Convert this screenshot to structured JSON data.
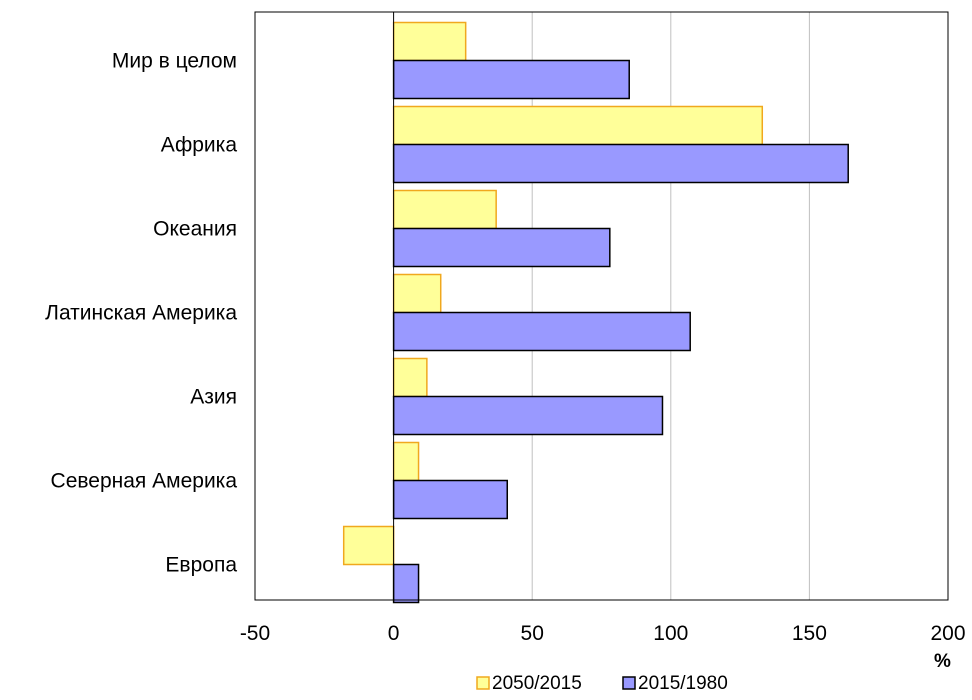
{
  "chart_data": {
    "type": "bar",
    "orientation": "horizontal",
    "categories": [
      "Мир в целом",
      "Африка",
      "Океания",
      "Латинская Америка",
      "Азия",
      "Северная Америка",
      "Европа"
    ],
    "series": [
      {
        "name": "2050/2015",
        "values": [
          26,
          133,
          37,
          17,
          12,
          9,
          -18
        ],
        "color": "#ffff99",
        "stroke": "#f0a81e"
      },
      {
        "name": "2015/1980",
        "values": [
          85,
          164,
          78,
          107,
          97,
          41,
          9
        ],
        "color": "#9999ff",
        "stroke": "#000000"
      }
    ],
    "xlim": [
      -50,
      200
    ],
    "xticks": [
      "-50",
      "0",
      "50",
      "100",
      "150",
      "200"
    ],
    "xtick_values": [
      -50,
      0,
      50,
      100,
      150,
      200
    ],
    "unit_label": "%",
    "grid": "vertical",
    "legend_position": "bottom"
  }
}
